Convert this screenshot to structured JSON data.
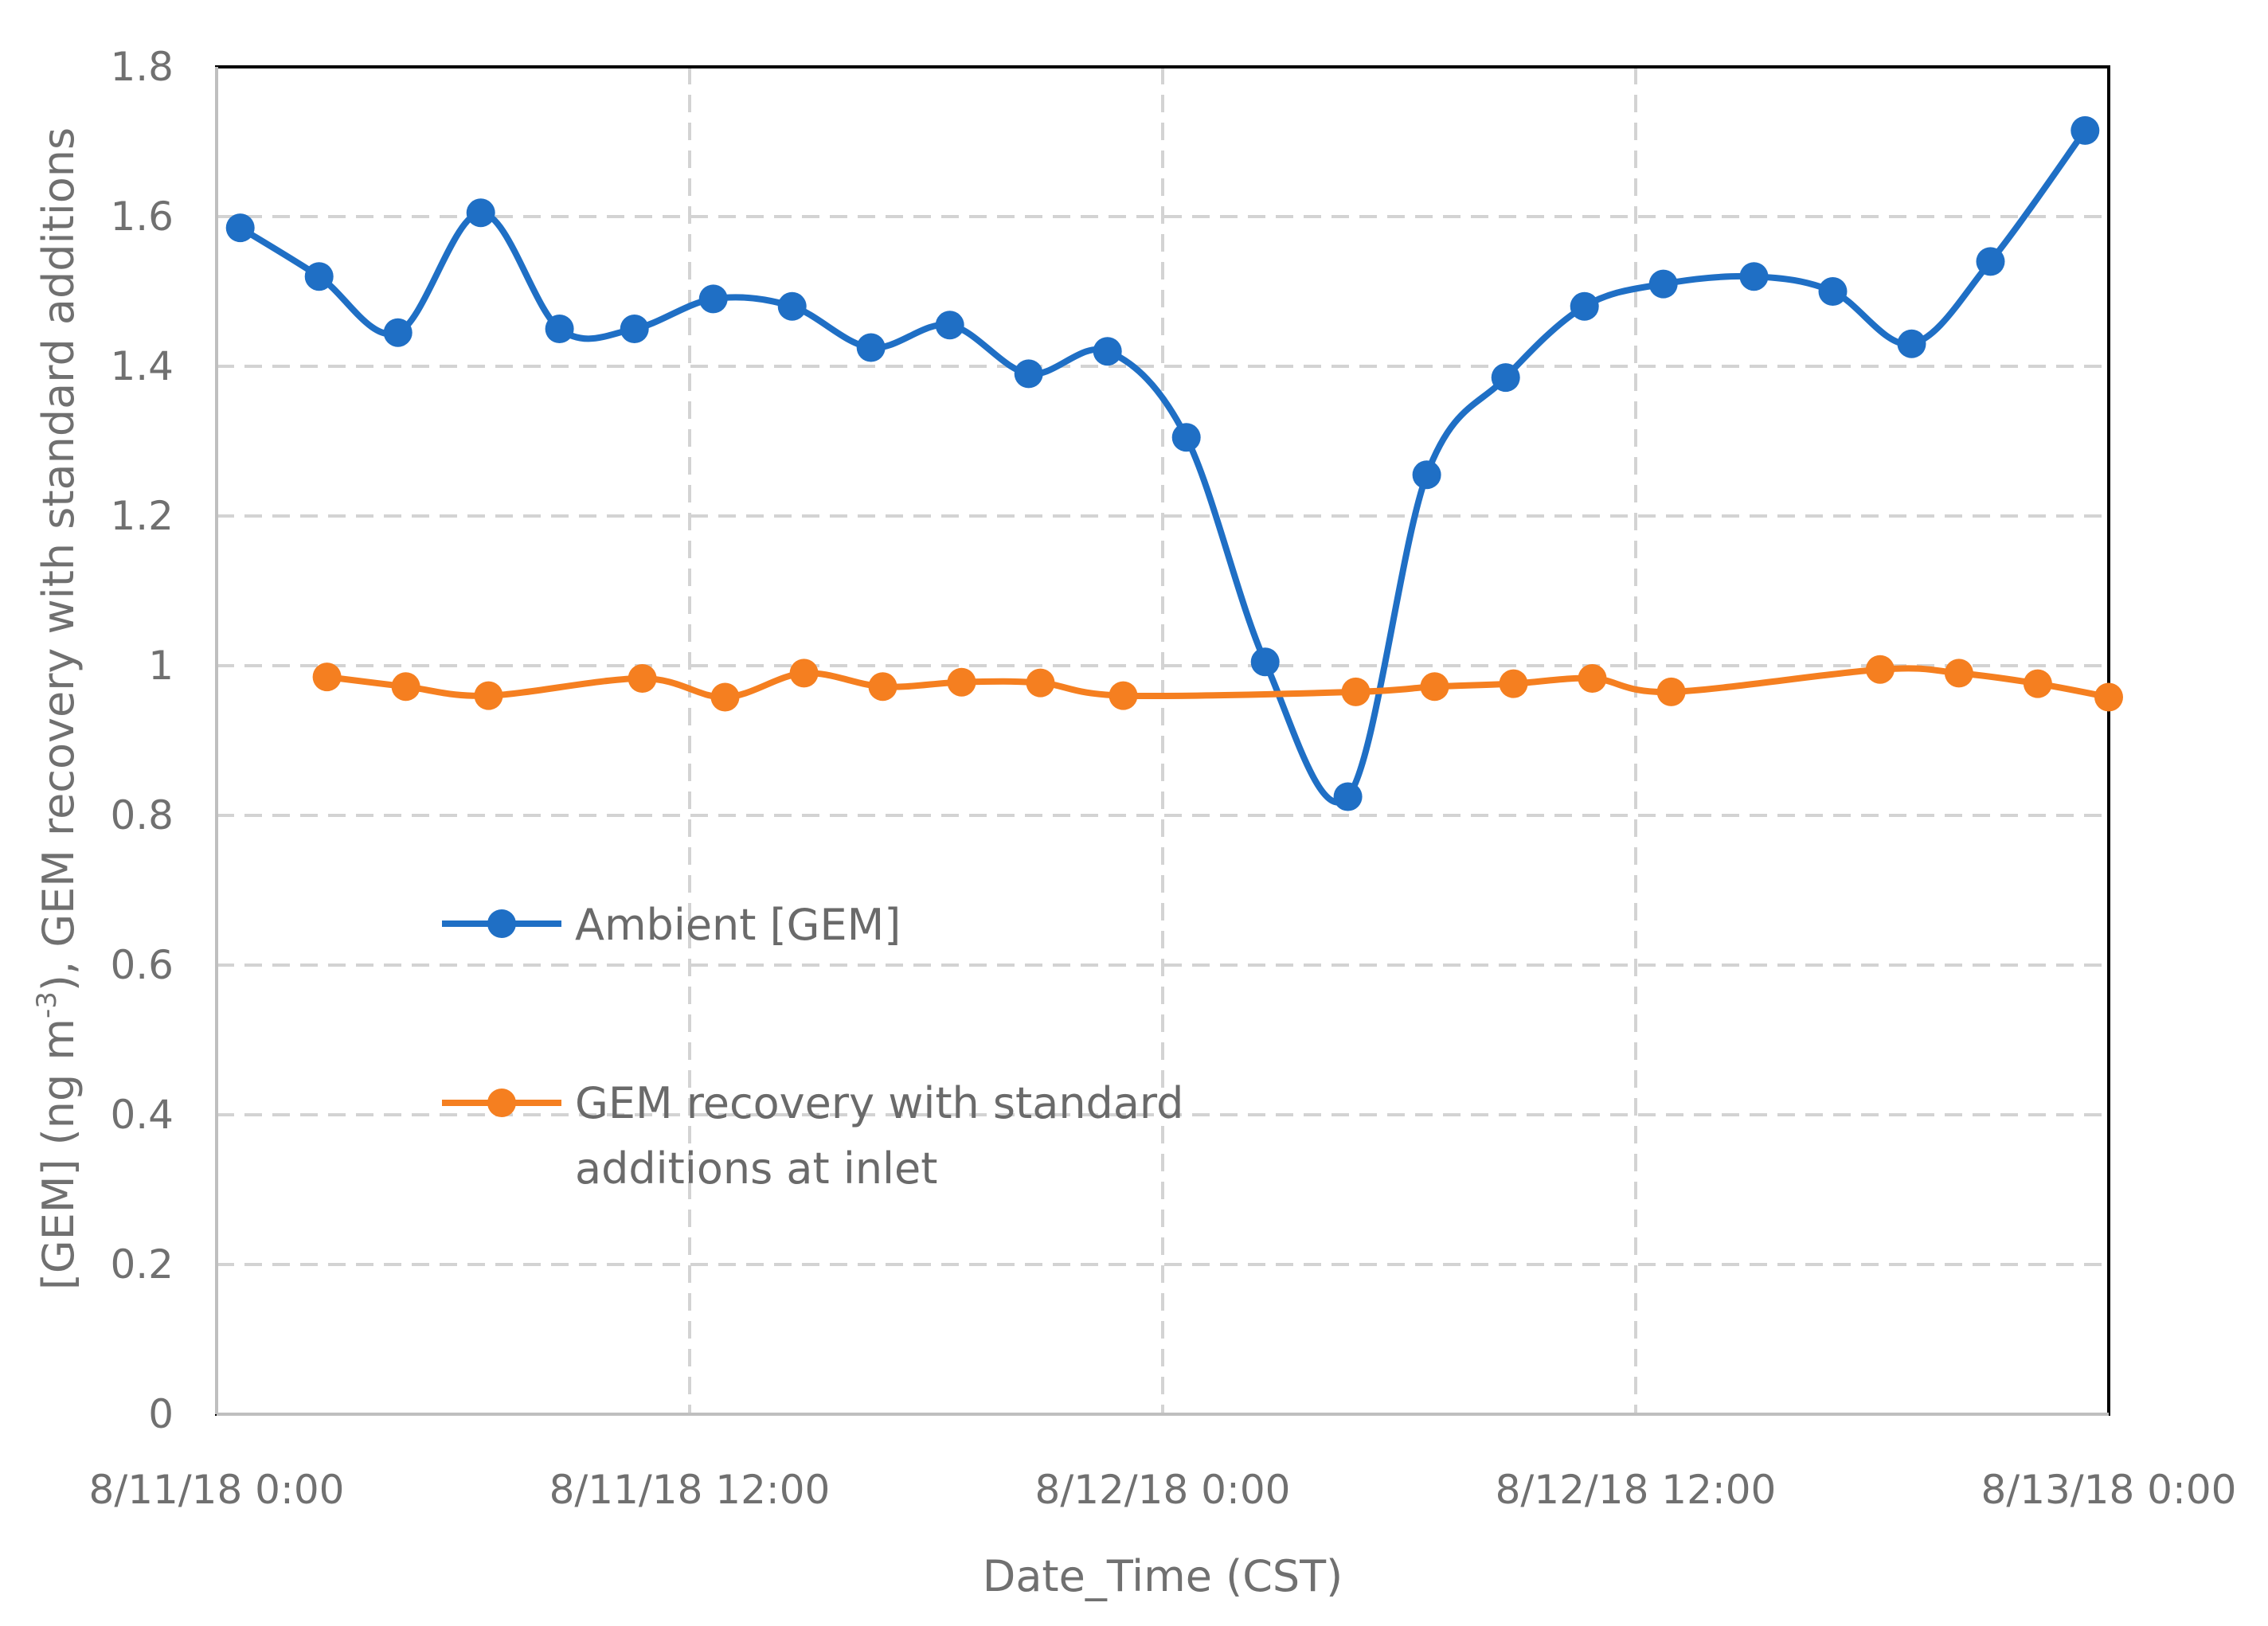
{
  "chart_data": {
    "type": "line",
    "title": "",
    "xlabel": "Date_Time  (CST)",
    "ylabel": "[GEM]  (ng m",
    "ylabel_superscript": "-3",
    "ylabel_suffix": "),  GEM recovery with standard additions",
    "x_unit": "hours since 8/11/18 0:00",
    "xlim": [
      0,
      48
    ],
    "ylim": [
      0,
      1.8
    ],
    "yticks": [
      0,
      0.2,
      0.4,
      0.6,
      0.8,
      1,
      1.2,
      1.4,
      1.6,
      1.8
    ],
    "ytick_labels": [
      "0",
      "0.2",
      "0.4",
      "0.6",
      "0.8",
      "1",
      "1.2",
      "1.4",
      "1.6",
      "1.8"
    ],
    "xticks": [
      0,
      12,
      24,
      36,
      48
    ],
    "xtick_labels": [
      "8/11/18 0:00",
      "8/11/18 12:00",
      "8/12/18 0:00",
      "8/12/18 12:00",
      "8/13/18 0:00"
    ],
    "grid": true,
    "legend_position": "center-left",
    "series": [
      {
        "name": "Ambient [GEM]",
        "color": "#1f6fc5",
        "smooth": true,
        "x": [
          0.6,
          2.6,
          4.6,
          6.7,
          8.7,
          10.6,
          12.6,
          14.6,
          16.6,
          18.6,
          20.6,
          22.6,
          24.6,
          26.6,
          28.7,
          30.7,
          32.7,
          34.7,
          36.7,
          39.0,
          41.0,
          43.0,
          45.0,
          47.4
        ],
        "values": [
          1.585,
          1.52,
          1.445,
          1.605,
          1.45,
          1.45,
          1.49,
          1.48,
          1.425,
          1.455,
          1.39,
          1.42,
          1.305,
          1.005,
          0.825,
          1.255,
          1.385,
          1.48,
          1.51,
          1.52,
          1.5,
          1.43,
          1.54,
          1.715
        ]
      },
      {
        "name": "GEM recovery with standard additions at inlet",
        "legend_lines": [
          "GEM recovery with standard",
          "additions at inlet"
        ],
        "color": "#f57f20",
        "smooth": true,
        "x": [
          2.8,
          4.8,
          6.9,
          10.8,
          12.9,
          14.9,
          16.9,
          18.9,
          20.9,
          23.0,
          28.9,
          30.9,
          32.9,
          34.9,
          36.9,
          42.2,
          44.2,
          46.2,
          48.0
        ],
        "values": [
          0.985,
          0.972,
          0.96,
          0.983,
          0.958,
          0.99,
          0.972,
          0.978,
          0.977,
          0.96,
          0.965,
          0.972,
          0.976,
          0.983,
          0.965,
          0.995,
          0.99,
          0.976,
          0.958
        ]
      }
    ]
  }
}
